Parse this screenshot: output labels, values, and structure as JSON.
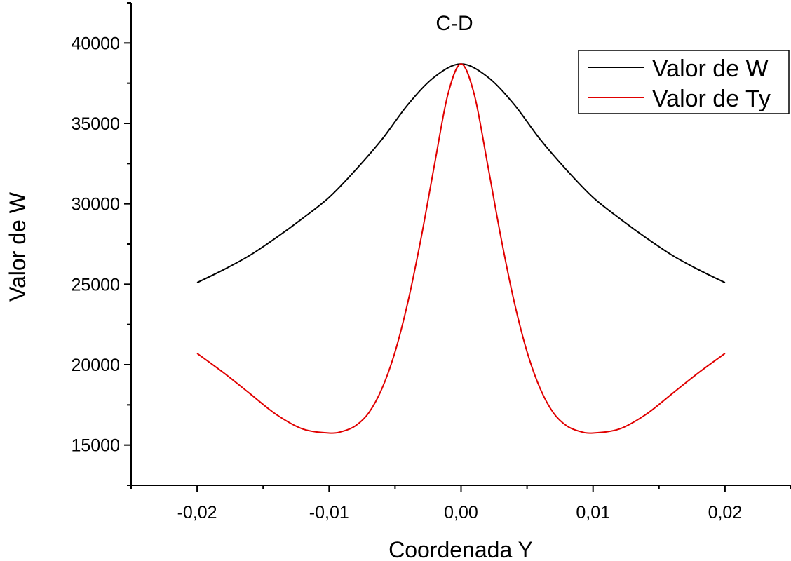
{
  "chart_data": {
    "type": "line",
    "title": "C-D",
    "xlabel": "Coordenada Y",
    "ylabel": "Valor de W",
    "xlim": [
      -0.025,
      0.025
    ],
    "ylim": [
      12500,
      42500
    ],
    "x_ticks": [
      -0.02,
      -0.01,
      0.0,
      0.01,
      0.02
    ],
    "x_tick_labels": [
      "-0,02",
      "-0,01",
      "0,00",
      "0,01",
      "0,02"
    ],
    "y_ticks": [
      15000,
      20000,
      25000,
      30000,
      35000,
      40000
    ],
    "y_tick_labels": [
      "15000",
      "20000",
      "25000",
      "30000",
      "35000",
      "40000"
    ],
    "grid": false,
    "legend_position": "top-right",
    "series": [
      {
        "name": "Valor de W",
        "color": "#000000",
        "x": [
          -0.02,
          -0.018,
          -0.016,
          -0.014,
          -0.012,
          -0.01,
          -0.008,
          -0.006,
          -0.004,
          -0.002,
          0.0,
          0.002,
          0.004,
          0.006,
          0.008,
          0.01,
          0.012,
          0.014,
          0.016,
          0.018,
          0.02
        ],
        "y": [
          25100,
          25900,
          26800,
          27900,
          29100,
          30400,
          32100,
          34000,
          36200,
          37900,
          38700,
          37900,
          36200,
          34000,
          32100,
          30400,
          29100,
          27900,
          26800,
          25900,
          25100
        ]
      },
      {
        "name": "Valor de Ty",
        "color": "#e00000",
        "x": [
          -0.02,
          -0.018,
          -0.016,
          -0.014,
          -0.012,
          -0.01,
          -0.009,
          -0.008,
          -0.007,
          -0.006,
          -0.005,
          -0.004,
          -0.003,
          -0.002,
          -0.001,
          0.0,
          0.001,
          0.002,
          0.003,
          0.004,
          0.005,
          0.006,
          0.007,
          0.008,
          0.009,
          0.01,
          0.012,
          0.014,
          0.016,
          0.018,
          0.02
        ],
        "y": [
          20700,
          19500,
          18200,
          16900,
          16000,
          15750,
          15850,
          16200,
          17000,
          18500,
          20800,
          24000,
          28000,
          32500,
          36800,
          38700,
          36800,
          32500,
          28000,
          24000,
          20800,
          18500,
          17000,
          16200,
          15850,
          15750,
          16000,
          16900,
          18200,
          19500,
          20700
        ]
      }
    ]
  }
}
